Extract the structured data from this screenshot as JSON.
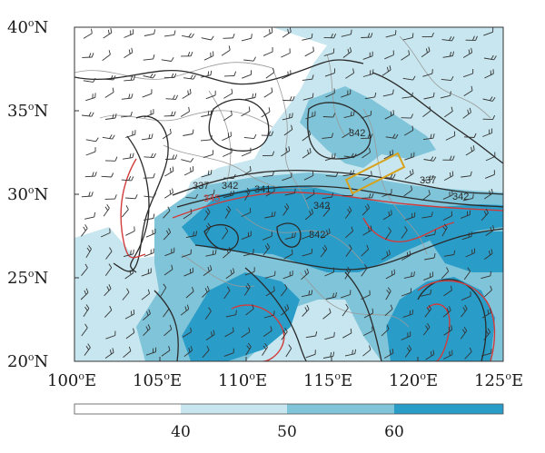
{
  "map": {
    "lat_ticks": [
      {
        "value": 40,
        "text": "40",
        "sup": "o",
        "hem": "N"
      },
      {
        "value": 35,
        "text": "35",
        "sup": "o",
        "hem": "N"
      },
      {
        "value": 30,
        "text": "30",
        "sup": "o",
        "hem": "N"
      },
      {
        "value": 25,
        "text": "25",
        "sup": "o",
        "hem": "N"
      },
      {
        "value": 20,
        "text": "20",
        "sup": "o",
        "hem": "N"
      }
    ],
    "lon_ticks": [
      {
        "value": 100,
        "text": "100",
        "sup": "o",
        "hem": "E"
      },
      {
        "value": 105,
        "text": "105",
        "sup": "o",
        "hem": "E"
      },
      {
        "value": 110,
        "text": "110",
        "sup": "o",
        "hem": "E"
      },
      {
        "value": 115,
        "text": "115",
        "sup": "o",
        "hem": "E"
      },
      {
        "value": 120,
        "text": "120",
        "sup": "o",
        "hem": "E"
      },
      {
        "value": 125,
        "text": "125",
        "sup": "o",
        "hem": "E"
      }
    ],
    "extent": {
      "lon_min": 100,
      "lon_max": 125,
      "lat_min": 20,
      "lat_max": 40
    },
    "contour_labels_black": [
      "337",
      "342",
      "341",
      "342",
      "342",
      "337",
      "342",
      "342"
    ],
    "contour_labels_red": [
      "345"
    ],
    "highlight_box_color": "#d9a21b",
    "red_contour_color": "#d23b3b",
    "black_contour_color": "#2a2a2a",
    "boundary_color": "#9a9a9a"
  },
  "colorbar": {
    "labels": [
      "40",
      "50",
      "60"
    ],
    "bins": [
      {
        "range": "<40",
        "color": "#ffffff"
      },
      {
        "range": "40-50",
        "color": "#c7e6ef"
      },
      {
        "range": "50-60",
        "color": "#7fc4d8"
      },
      {
        "range": ">60",
        "color": "#2a9cc8"
      }
    ]
  }
}
